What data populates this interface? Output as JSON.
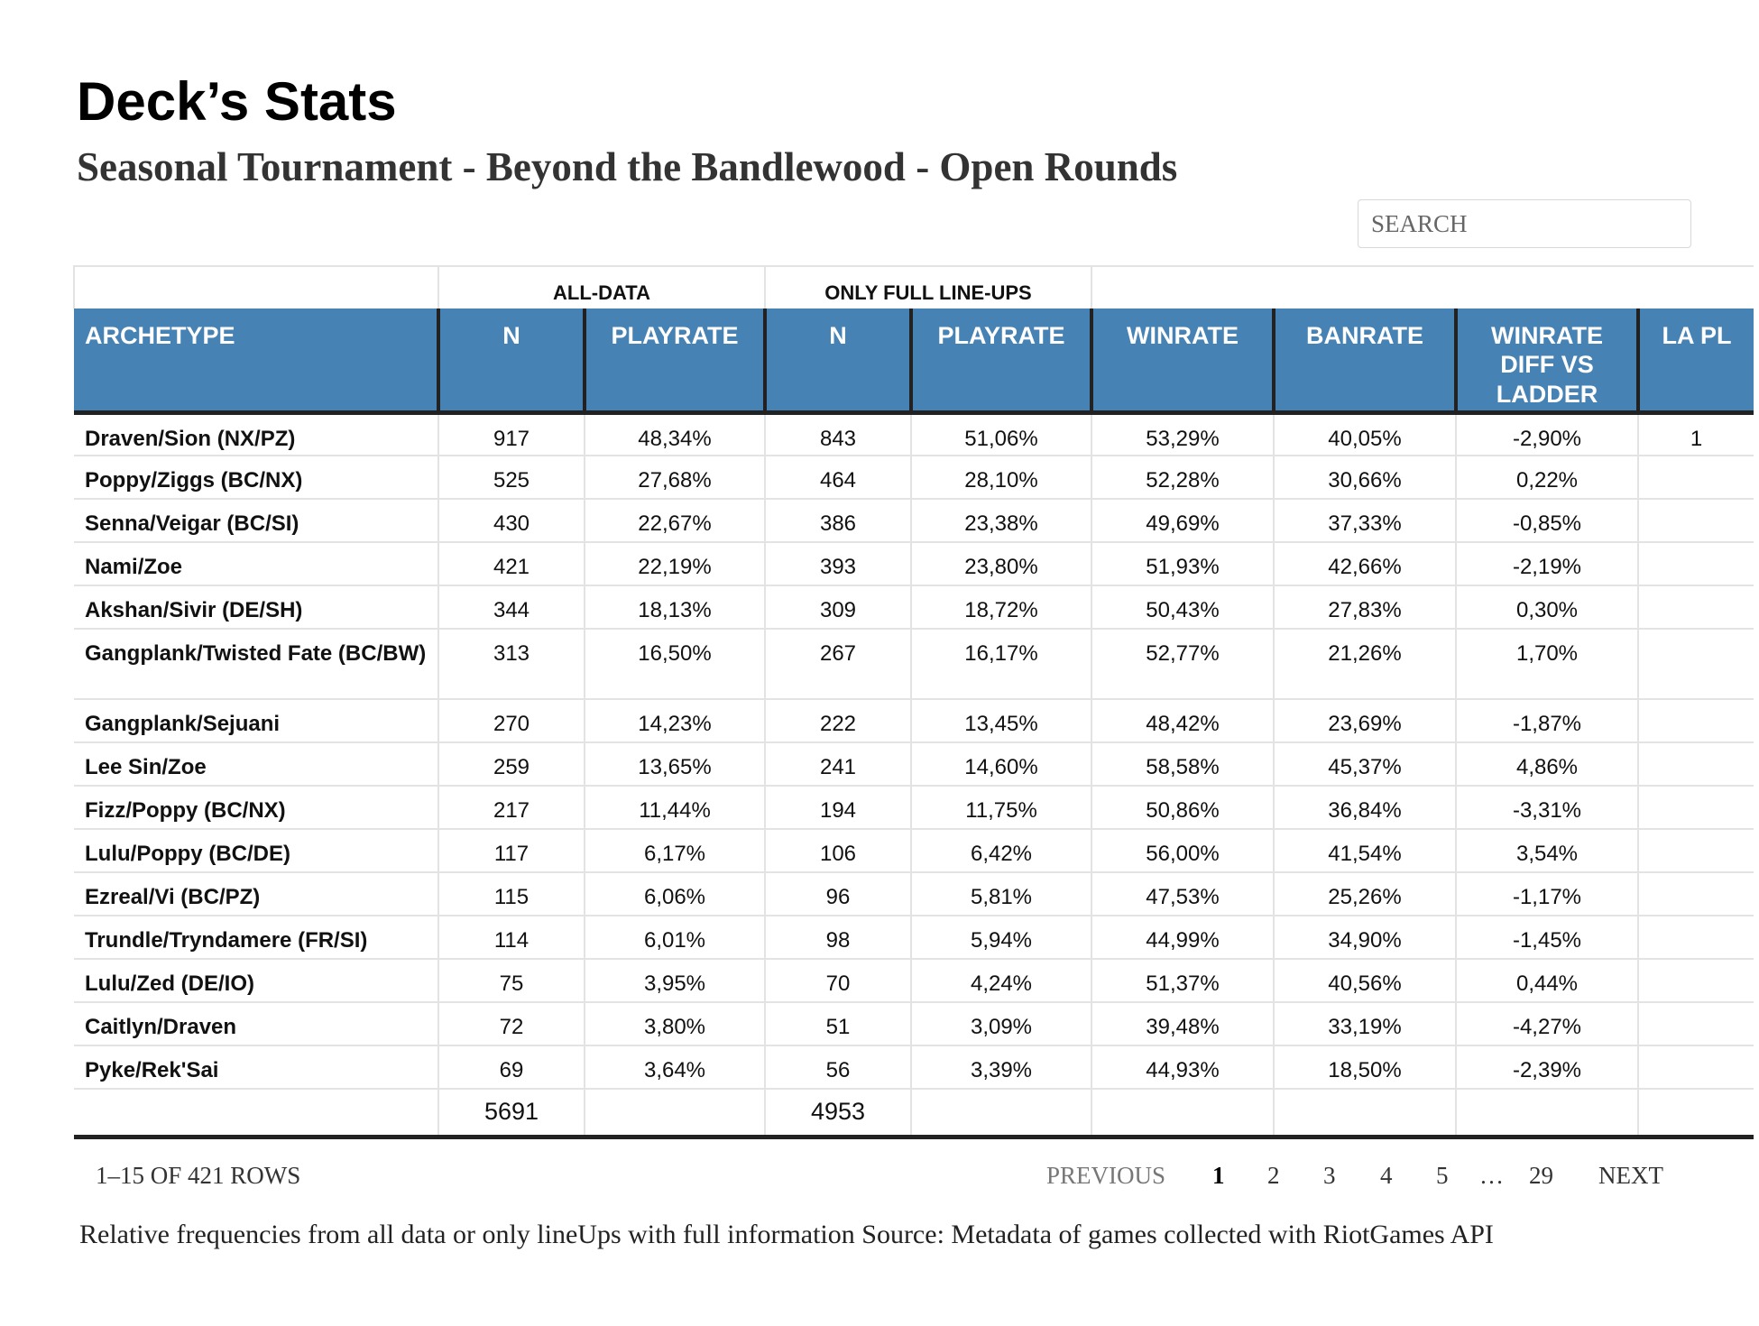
{
  "title": "Deck’s Stats",
  "subtitle": "Seasonal Tournament - Beyond the Bandlewood - Open Rounds",
  "search": {
    "placeholder": "SEARCH"
  },
  "table": {
    "group_headers": [
      "",
      "ALL-DATA",
      "ONLY FULL LINE-UPS",
      ""
    ],
    "columns": [
      "ARCHETYPE",
      "N",
      "PLAYRATE",
      "N",
      "PLAYRATE",
      "WINRATE",
      "BANRATE",
      "WINRATE DIFF VS LADDER",
      "LA PL"
    ],
    "rows": [
      [
        "Draven/Sion (NX/PZ)",
        "917",
        "48,34%",
        "843",
        "51,06%",
        "53,29%",
        "40,05%",
        "-2,90%",
        "1"
      ],
      [
        "Poppy/Ziggs (BC/NX)",
        "525",
        "27,68%",
        "464",
        "28,10%",
        "52,28%",
        "30,66%",
        "0,22%",
        ""
      ],
      [
        "Senna/Veigar (BC/SI)",
        "430",
        "22,67%",
        "386",
        "23,38%",
        "49,69%",
        "37,33%",
        "-0,85%",
        ""
      ],
      [
        "Nami/Zoe",
        "421",
        "22,19%",
        "393",
        "23,80%",
        "51,93%",
        "42,66%",
        "-2,19%",
        ""
      ],
      [
        "Akshan/Sivir (DE/SH)",
        "344",
        "18,13%",
        "309",
        "18,72%",
        "50,43%",
        "27,83%",
        "0,30%",
        ""
      ],
      [
        "Gangplank/Twisted Fate (BC/BW)",
        "313",
        "16,50%",
        "267",
        "16,17%",
        "52,77%",
        "21,26%",
        "1,70%",
        ""
      ],
      [
        "Gangplank/Sejuani",
        "270",
        "14,23%",
        "222",
        "13,45%",
        "48,42%",
        "23,69%",
        "-1,87%",
        ""
      ],
      [
        "Lee Sin/Zoe",
        "259",
        "13,65%",
        "241",
        "14,60%",
        "58,58%",
        "45,37%",
        "4,86%",
        ""
      ],
      [
        "Fizz/Poppy (BC/NX)",
        "217",
        "11,44%",
        "194",
        "11,75%",
        "50,86%",
        "36,84%",
        "-3,31%",
        ""
      ],
      [
        "Lulu/Poppy (BC/DE)",
        "117",
        "6,17%",
        "106",
        "6,42%",
        "56,00%",
        "41,54%",
        "3,54%",
        ""
      ],
      [
        "Ezreal/Vi (BC/PZ)",
        "115",
        "6,06%",
        "96",
        "5,81%",
        "47,53%",
        "25,26%",
        "-1,17%",
        ""
      ],
      [
        "Trundle/Tryndamere (FR/SI)",
        "114",
        "6,01%",
        "98",
        "5,94%",
        "44,99%",
        "34,90%",
        "-1,45%",
        ""
      ],
      [
        "Lulu/Zed (DE/IO)",
        "75",
        "3,95%",
        "70",
        "4,24%",
        "51,37%",
        "40,56%",
        "0,44%",
        ""
      ],
      [
        "Caitlyn/Draven",
        "72",
        "3,80%",
        "51",
        "3,09%",
        "39,48%",
        "33,19%",
        "-4,27%",
        ""
      ],
      [
        "Pyke/Rek'Sai",
        "69",
        "3,64%",
        "56",
        "3,39%",
        "44,93%",
        "18,50%",
        "-2,39%",
        ""
      ]
    ],
    "totals": [
      "",
      "5691",
      "",
      "4953",
      "",
      "",
      "",
      "",
      ""
    ]
  },
  "pagination": {
    "info": "1–15 OF 421 ROWS",
    "previous": "PREVIOUS",
    "pages": [
      "1",
      "2",
      "3",
      "4",
      "5",
      "…",
      "29"
    ],
    "current": "1",
    "next": "NEXT"
  },
  "caption": "Relative frequencies from all data or only lineUps with full information Source: Metadata of games collected with RiotGames API"
}
